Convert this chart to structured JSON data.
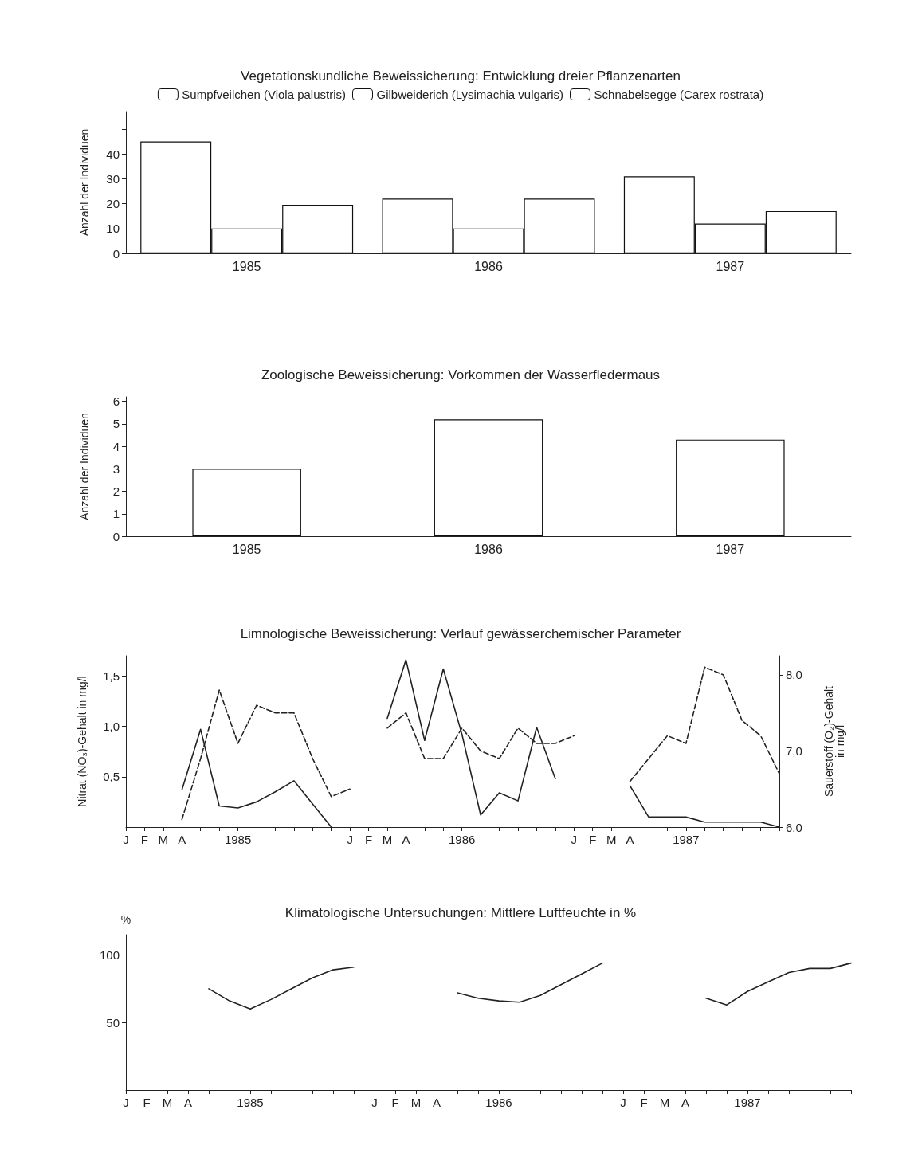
{
  "chart_data": [
    {
      "type": "bar",
      "title": "Vegetationskundliche Beweissicherung: Entwicklung dreier Pflanzenarten",
      "ylabel": "Anzahl der Individuen",
      "categories": [
        "1985",
        "1986",
        "1987"
      ],
      "series": [
        {
          "name": "Sumpfveilchen (Viola palustris)",
          "color": "#ffffff",
          "values": [
            45,
            22,
            31
          ]
        },
        {
          "name": "Gilbweiderich (Lysimachia vulgaris)",
          "color": "#ffffff",
          "values": [
            10,
            10,
            12
          ]
        },
        {
          "name": "Schnabelsegge (Carex rostrata)",
          "color": "#ffffff",
          "values": [
            19.5,
            22,
            17
          ]
        }
      ],
      "ylim": [
        0,
        57
      ],
      "yticks": [
        0,
        10,
        20,
        30,
        40,
        {
          "value": 50,
          "label": null
        }
      ],
      "grid": false,
      "legend": "top"
    },
    {
      "type": "bar",
      "title": "Zoologische Beweissicherung: Vorkommen der Wasserfledermaus",
      "ylabel": "Anzahl der Individuen",
      "categories": [
        "1985",
        "1986",
        "1987"
      ],
      "series": [
        {
          "color": "#ffffff",
          "values": [
            3,
            5.2,
            4.3
          ]
        }
      ],
      "ylim": [
        0,
        6.2
      ],
      "yticks": [
        0,
        1,
        2,
        3,
        4,
        5,
        6
      ],
      "grid": false,
      "legend": false
    },
    {
      "type": "line",
      "title": "Limnologische Beweissicherung: Verlauf gewässerchemischer Parameter",
      "ylabel": "Nitrat (NO₃)-Gehalt in mg/l",
      "y2label": "Sauerstoff (O₂)-Gehalt\nin mg/l",
      "categories": [
        "J",
        "F",
        "M",
        "A",
        null,
        null,
        "1985",
        null,
        null,
        null,
        null,
        null,
        "J",
        "F",
        "M",
        "A",
        null,
        null,
        "1986",
        null,
        null,
        null,
        null,
        null,
        "J",
        "F",
        "M",
        "A",
        null,
        null,
        "1987",
        null,
        null,
        null,
        null,
        null
      ],
      "series": [
        {
          "color": "#222222",
          "line_style": "solid",
          "values": [
            null,
            null,
            null,
            0.37,
            0.97,
            0.21,
            0.19,
            0.25,
            0.35,
            0.46,
            0.23,
            0,
            null,
            null,
            1.08,
            1.66,
            0.86,
            1.57,
            0.92,
            0.12,
            0.34,
            0.26,
            0.99,
            0.48,
            null,
            null,
            null,
            0.41,
            0.1,
            0.1,
            0.1,
            0.05,
            0.05,
            0.05,
            0.05,
            0
          ]
        },
        {
          "color": "#222222",
          "line_style": "dashed",
          "axis": "y2",
          "values": [
            null,
            null,
            null,
            6.1,
            6.9,
            7.8,
            7.1,
            7.6,
            7.5,
            7.5,
            6.9,
            6.4,
            6.5,
            null,
            7.3,
            7.5,
            6.9,
            6.9,
            7.3,
            7.0,
            6.9,
            7.3,
            7.1,
            7.1,
            7.2,
            null,
            null,
            6.6,
            6.9,
            7.2,
            7.1,
            8.1,
            8.0,
            7.4,
            7.2,
            6.7
          ]
        }
      ],
      "ylim": [
        0,
        1.7
      ],
      "yticks": [
        {
          "value": 0.5,
          "label": "0,5"
        },
        {
          "value": 1,
          "label": "1,0"
        },
        {
          "value": 1.5,
          "label": "1,5"
        }
      ],
      "y2lim": [
        6,
        8.25
      ],
      "y2ticks": [
        {
          "value": 6,
          "label": "6,0"
        },
        {
          "value": 7,
          "label": "7,0"
        },
        {
          "value": 8,
          "label": "8,0"
        }
      ],
      "grid": false,
      "legend": false,
      "marker": "none"
    },
    {
      "type": "line",
      "title": "Klimatologische Untersuchungen: Mittlere Luftfeuchte in %",
      "ylabel": "%",
      "categories": [
        "J",
        "F",
        "M",
        "A",
        null,
        null,
        "1985",
        null,
        null,
        null,
        null,
        null,
        "J",
        "F",
        "M",
        "A",
        null,
        null,
        "1986",
        null,
        null,
        null,
        null,
        null,
        "J",
        "F",
        "M",
        "A",
        null,
        null,
        "1987",
        null,
        null,
        null,
        null,
        null
      ],
      "series": [
        {
          "color": "#222222",
          "values": [
            null,
            null,
            null,
            null,
            75,
            66,
            60,
            67,
            75,
            83,
            89,
            91,
            null,
            null,
            null,
            null,
            72,
            68,
            66,
            65,
            70,
            78,
            86,
            94,
            null,
            null,
            null,
            null,
            68,
            63,
            73,
            80,
            87,
            90,
            90,
            94
          ]
        }
      ],
      "ylim": [
        0,
        115
      ],
      "yticks": [
        50,
        100
      ],
      "grid": false,
      "legend": false,
      "marker": "none"
    }
  ]
}
